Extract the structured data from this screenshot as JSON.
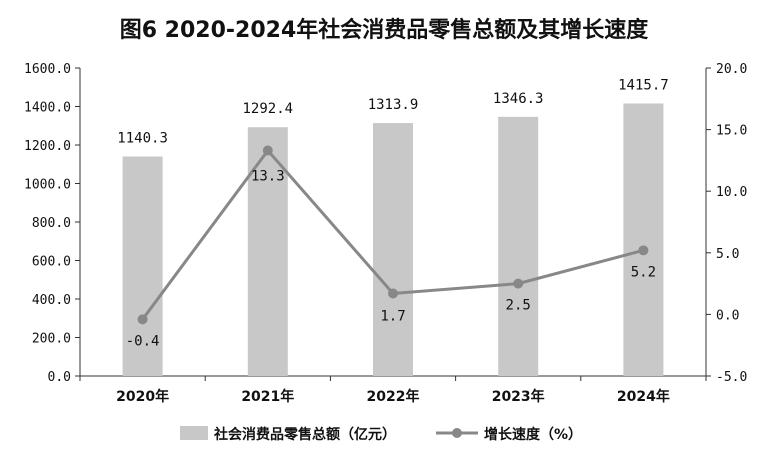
{
  "chart_data": {
    "type": "bar",
    "title": "图6  2020-2024年社会消费品零售总额及其增长速度",
    "categories": [
      "2020年",
      "2021年",
      "2022年",
      "2023年",
      "2024年"
    ],
    "series": [
      {
        "name": "社会消费品零售总额（亿元）",
        "type": "bar",
        "axis": "left",
        "values": [
          1140.3,
          1292.4,
          1313.9,
          1346.3,
          1415.7
        ],
        "labels": [
          "1140.3",
          "1292.4",
          "1313.9",
          "1346.3",
          "1415.7"
        ],
        "color": "#c8c8c8"
      },
      {
        "name": "增长速度（%）",
        "type": "line",
        "axis": "right",
        "values": [
          -0.4,
          13.3,
          1.7,
          2.5,
          5.2
        ],
        "labels": [
          "-0.4",
          "13.3",
          "1.7",
          "2.5",
          "5.2"
        ],
        "color": "#888888"
      }
    ],
    "y_left": {
      "min": 0,
      "max": 1600,
      "step": 200,
      "ticks": [
        "0.0",
        "200.0",
        "400.0",
        "600.0",
        "800.0",
        "1000.0",
        "1200.0",
        "1400.0",
        "1600.0"
      ]
    },
    "y_right": {
      "min": -5,
      "max": 20,
      "step": 5,
      "ticks": [
        "-5.0",
        "0.0",
        "5.0",
        "10.0",
        "15.0",
        "20.0"
      ]
    },
    "grid": false,
    "legend": "bottom"
  }
}
